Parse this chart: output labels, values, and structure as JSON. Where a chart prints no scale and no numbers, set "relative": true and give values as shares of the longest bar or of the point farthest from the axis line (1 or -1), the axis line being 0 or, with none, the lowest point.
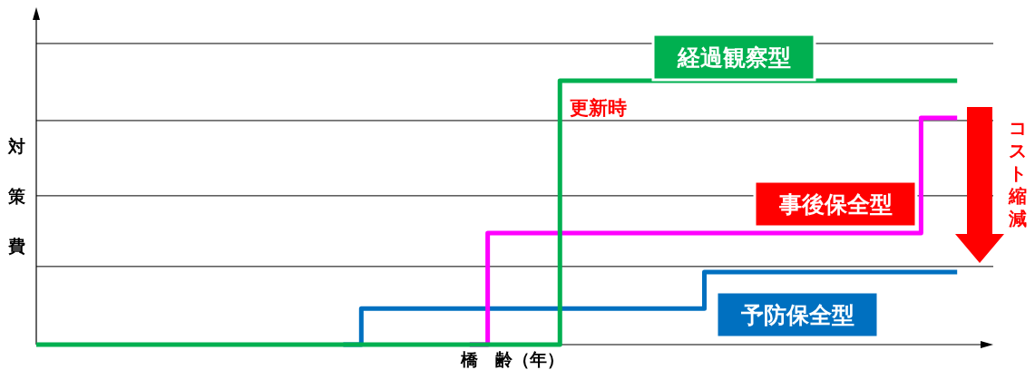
{
  "chart_data": {
    "type": "step",
    "relative": true,
    "xlabel": "橋　齢（年）",
    "ylabel": "対策費",
    "categories": [
      null,
      null,
      null,
      null,
      null,
      null,
      null,
      null,
      null,
      null,
      null,
      null,
      null,
      null,
      null,
      null,
      null,
      null,
      null,
      null,
      null,
      null,
      null,
      null,
      null,
      null,
      null,
      null,
      null,
      null,
      null,
      null,
      null,
      null,
      null,
      null,
      null,
      null,
      null,
      null,
      null,
      null,
      null,
      null,
      null,
      null,
      null,
      null,
      null,
      null,
      null,
      null,
      null,
      null
    ],
    "series": [
      {
        "name": "予防保全型",
        "color": "#0070c0",
        "values": [
          null,
          null,
          null,
          null,
          null,
          null,
          null,
          null,
          null,
          null,
          null,
          null,
          null,
          null,
          null,
          null,
          null,
          0,
          0.137,
          0.137,
          0.137,
          0.137,
          0.137,
          0.137,
          0.137,
          0.137,
          0.137,
          0.137,
          0.137,
          0.137,
          0.137,
          0.137,
          0.137,
          0.137,
          0.137,
          0.137,
          0.137,
          0.275,
          0.275,
          0.275,
          0.275,
          0.275,
          0.275,
          0.275,
          0.275,
          0.275,
          0.275,
          0.275,
          0.275,
          0.275,
          0.275,
          0.275,
          null,
          null
        ]
      },
      {
        "name": "事後保全型",
        "color": "#ff00ff",
        "values": [
          null,
          null,
          null,
          null,
          null,
          null,
          null,
          null,
          null,
          null,
          null,
          null,
          null,
          null,
          null,
          null,
          null,
          null,
          null,
          null,
          null,
          null,
          null,
          null,
          0,
          0.423,
          0.423,
          0.423,
          0.423,
          0.423,
          0.423,
          0.423,
          0.423,
          0.423,
          0.423,
          0.423,
          0.423,
          0.423,
          0.423,
          0.423,
          0.423,
          0.423,
          0.423,
          0.423,
          0.423,
          0.423,
          0.423,
          0.423,
          0.423,
          0.859,
          0.859,
          0.859,
          null,
          null
        ]
      },
      {
        "name": "経過観察型",
        "color": "#00b050",
        "values": [
          0,
          0,
          0,
          0,
          0,
          0,
          0,
          0,
          0,
          0,
          0,
          0,
          0,
          0,
          0,
          0,
          0,
          0,
          0,
          0,
          0,
          0,
          0,
          0,
          0,
          0,
          0,
          0,
          0,
          1,
          1,
          1,
          1,
          1,
          1,
          1,
          1,
          1,
          1,
          1,
          1,
          1,
          1,
          1,
          1,
          1,
          1,
          1,
          1,
          1,
          1,
          1,
          null,
          null
        ]
      }
    ],
    "ref_lines": [
      {
        "axis": "y",
        "value": 1.141,
        "color": "#000000"
      },
      {
        "axis": "y",
        "value": 0.849,
        "color": "#000000"
      },
      {
        "axis": "y",
        "value": 0.564,
        "color": "#000000"
      },
      {
        "axis": "y",
        "value": 0.296,
        "color": "#000000"
      }
    ],
    "annotations": [
      "更新時",
      "コスト縮減"
    ]
  }
}
